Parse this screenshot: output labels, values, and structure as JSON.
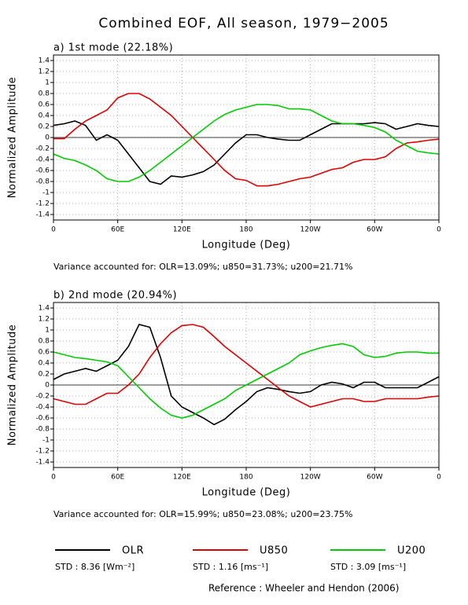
{
  "title": "Combined EOF, All season, 1979−2005",
  "chart_data": [
    {
      "type": "line",
      "title": "a) 1st mode (22.18%)",
      "xlabel": "Longitude (Deg)",
      "ylabel": "Normalized Amplitude",
      "annotation": "Variance accounted for: OLR=13.09%; u850=31.73%; u200=21.71%",
      "x": [
        0,
        10,
        20,
        30,
        40,
        50,
        60,
        70,
        80,
        90,
        100,
        110,
        120,
        130,
        140,
        150,
        160,
        170,
        180,
        190,
        200,
        210,
        220,
        230,
        240,
        250,
        260,
        270,
        280,
        290,
        300,
        310,
        320,
        330,
        340,
        350,
        360
      ],
      "xlim": [
        0,
        360
      ],
      "xticks": [
        0,
        {
          "value": 60,
          "label": "60E"
        },
        {
          "value": 120,
          "label": "120E"
        },
        180,
        {
          "value": 240,
          "label": "120W"
        },
        {
          "value": 300,
          "label": "60W"
        },
        {
          "value": 360,
          "label": "0"
        }
      ],
      "ylim": [
        -1.5,
        1.5
      ],
      "yticks": [
        -1.4,
        -1.2,
        -1,
        -0.8,
        -0.6,
        -0.4,
        -0.2,
        0,
        0.2,
        0.4,
        0.6,
        0.8,
        1,
        1.2,
        1.4
      ],
      "grid": true,
      "series": [
        {
          "name": "OLR",
          "color": "#000000",
          "values": [
            0.22,
            0.25,
            0.3,
            0.22,
            -0.05,
            0.05,
            -0.05,
            -0.3,
            -0.55,
            -0.8,
            -0.85,
            -0.7,
            -0.72,
            -0.68,
            -0.62,
            -0.5,
            -0.3,
            -0.1,
            0.05,
            0.05,
            0.0,
            -0.03,
            -0.05,
            -0.05,
            0.05,
            0.15,
            0.25,
            0.25,
            0.25,
            0.25,
            0.27,
            0.25,
            0.15,
            0.2,
            0.25,
            0.22,
            0.2
          ]
        },
        {
          "name": "U850",
          "color": "#e00000",
          "values": [
            -0.02,
            -0.02,
            0.15,
            0.3,
            0.4,
            0.5,
            0.72,
            0.8,
            0.8,
            0.7,
            0.55,
            0.4,
            0.2,
            0.0,
            -0.2,
            -0.4,
            -0.6,
            -0.75,
            -0.78,
            -0.88,
            -0.88,
            -0.85,
            -0.8,
            -0.75,
            -0.72,
            -0.65,
            -0.58,
            -0.55,
            -0.45,
            -0.4,
            -0.4,
            -0.35,
            -0.2,
            -0.1,
            -0.08,
            -0.05,
            -0.03
          ]
        },
        {
          "name": "U200",
          "color": "#00cc00",
          "values": [
            -0.3,
            -0.38,
            -0.42,
            -0.5,
            -0.6,
            -0.75,
            -0.8,
            -0.8,
            -0.72,
            -0.6,
            -0.45,
            -0.3,
            -0.15,
            0.0,
            0.15,
            0.3,
            0.42,
            0.5,
            0.55,
            0.6,
            0.6,
            0.58,
            0.52,
            0.52,
            0.5,
            0.4,
            0.3,
            0.25,
            0.25,
            0.22,
            0.18,
            0.1,
            -0.05,
            -0.15,
            -0.25,
            -0.28,
            -0.3
          ]
        }
      ]
    },
    {
      "type": "line",
      "title": "b) 2nd mode (20.94%)",
      "xlabel": "Longitude (Deg)",
      "ylabel": "Normalized Amplitude",
      "annotation": "Variance accounted for: OLR=15.99%; u850=23.08%; u200=23.75%",
      "x": [
        0,
        10,
        20,
        30,
        40,
        50,
        60,
        70,
        80,
        90,
        100,
        110,
        120,
        130,
        140,
        150,
        160,
        170,
        180,
        190,
        200,
        210,
        220,
        230,
        240,
        250,
        260,
        270,
        280,
        290,
        300,
        310,
        320,
        330,
        340,
        350,
        360
      ],
      "xlim": [
        0,
        360
      ],
      "xticks": [
        0,
        {
          "value": 60,
          "label": "60E"
        },
        {
          "value": 120,
          "label": "120E"
        },
        180,
        {
          "value": 240,
          "label": "120W"
        },
        {
          "value": 300,
          "label": "60W"
        },
        {
          "value": 360,
          "label": "0"
        }
      ],
      "ylim": [
        -1.5,
        1.5
      ],
      "yticks": [
        -1.4,
        -1.2,
        -1,
        -0.8,
        -0.6,
        -0.4,
        -0.2,
        0,
        0.2,
        0.4,
        0.6,
        0.8,
        1,
        1.2,
        1.4
      ],
      "grid": true,
      "series": [
        {
          "name": "OLR",
          "color": "#000000",
          "values": [
            0.1,
            0.2,
            0.25,
            0.3,
            0.25,
            0.35,
            0.45,
            0.7,
            1.1,
            1.05,
            0.5,
            -0.2,
            -0.4,
            -0.5,
            -0.6,
            -0.72,
            -0.62,
            -0.45,
            -0.3,
            -0.12,
            -0.05,
            -0.08,
            -0.12,
            -0.15,
            -0.12,
            0.0,
            0.05,
            0.02,
            -0.05,
            0.05,
            0.05,
            -0.05,
            -0.05,
            -0.05,
            -0.05,
            0.05,
            0.15
          ]
        },
        {
          "name": "U850",
          "color": "#e00000",
          "values": [
            -0.25,
            -0.3,
            -0.35,
            -0.35,
            -0.25,
            -0.15,
            -0.15,
            0.0,
            0.2,
            0.5,
            0.75,
            0.95,
            1.08,
            1.1,
            1.05,
            0.88,
            0.7,
            0.55,
            0.4,
            0.25,
            0.1,
            -0.05,
            -0.2,
            -0.3,
            -0.4,
            -0.35,
            -0.3,
            -0.25,
            -0.25,
            -0.3,
            -0.3,
            -0.25,
            -0.25,
            -0.25,
            -0.25,
            -0.22,
            -0.2
          ]
        },
        {
          "name": "U200",
          "color": "#00cc00",
          "values": [
            0.6,
            0.55,
            0.5,
            0.48,
            0.45,
            0.42,
            0.35,
            0.15,
            -0.05,
            -0.25,
            -0.42,
            -0.55,
            -0.6,
            -0.55,
            -0.45,
            -0.35,
            -0.25,
            -0.1,
            0.0,
            0.1,
            0.2,
            0.3,
            0.4,
            0.55,
            0.62,
            0.68,
            0.72,
            0.75,
            0.7,
            0.55,
            0.5,
            0.52,
            0.58,
            0.6,
            0.6,
            0.58,
            0.58
          ]
        }
      ]
    }
  ],
  "legend_std": [
    "STD : 8.36 [Wm⁻²]",
    "STD : 1.16 [ms⁻¹]",
    "STD : 3.09 [ms⁻¹]"
  ],
  "reference": "Reference : Wheeler and Hendon (2006)"
}
